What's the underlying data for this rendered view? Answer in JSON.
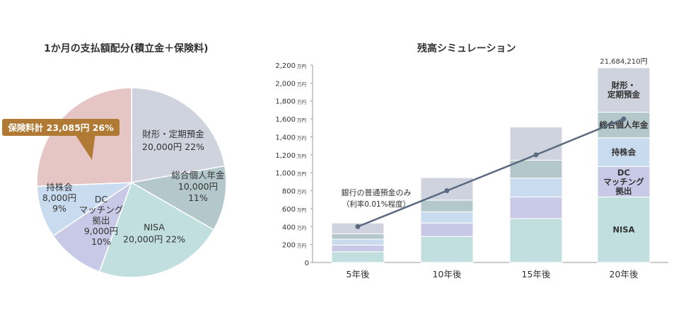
{
  "chart_data": [
    {
      "type": "pie",
      "title": "1か月の支払額配分(積立金＋保険料)",
      "unit": "円",
      "slices": [
        {
          "name": "財形・定期預金",
          "lines": [
            "財形・定期預金",
            "20,000円 22%"
          ],
          "value": 20000,
          "percent": 22,
          "color": "#cfd3de"
        },
        {
          "name": "総合個人年金",
          "lines": [
            "総合個人年金",
            "10,000円",
            "11%"
          ],
          "value": 10000,
          "percent": 11,
          "color": "#b4c8cc"
        },
        {
          "name": "NISA",
          "lines": [
            "NISA",
            "20,000円 22%"
          ],
          "value": 20000,
          "percent": 22,
          "color": "#c1dfdf"
        },
        {
          "name": "DCマッチング拠出",
          "lines": [
            "DC",
            "マッチング",
            "拠出",
            "9,000円",
            "10%"
          ],
          "value": 9000,
          "percent": 10,
          "color": "#c8c9e6"
        },
        {
          "name": "持株会",
          "lines": [
            "持株会",
            "8,000円",
            "9%"
          ],
          "value": 8000,
          "percent": 9,
          "color": "#c9dbef"
        },
        {
          "name": "保険料計",
          "lines": [],
          "value": 23085,
          "percent": 26,
          "color": "#e6c6c4"
        }
      ],
      "callout": {
        "text": "保険料計 23,085円 26%",
        "color": "#b07a34"
      }
    },
    {
      "type": "stacked-bar+line",
      "title": "残高シミュレーション",
      "categories": [
        "5年後",
        "10年後",
        "15年後",
        "20年後"
      ],
      "ylim": [
        0,
        2200
      ],
      "yticks": [
        0,
        200,
        400,
        600,
        800,
        1000,
        1200,
        1400,
        1600,
        1800,
        2000,
        2200
      ],
      "ytick_labels": [
        "0",
        "200",
        "400",
        "600",
        "800",
        "1,000",
        "1,200",
        "1,400",
        "1,600",
        "1,800",
        "2,000",
        "2,200"
      ],
      "ytick_unit": "万円",
      "series": [
        {
          "name": "NISA",
          "label_lines": [
            "NISA"
          ],
          "color": "#c1dfdf",
          "values": [
            120,
            290,
            490,
            730
          ]
        },
        {
          "name": "DCマッチング拠出",
          "label_lines": [
            "DC",
            "マッチング",
            "拠出"
          ],
          "color": "#c8c9e6",
          "values": [
            75,
            150,
            240,
            340
          ]
        },
        {
          "name": "持株会",
          "label_lines": [
            "持株会"
          ],
          "color": "#c9dbef",
          "values": [
            65,
            125,
            210,
            320
          ]
        },
        {
          "name": "総合個人年金",
          "label_lines": [
            "総合個人年金"
          ],
          "color": "#b4c8cc",
          "values": [
            60,
            130,
            200,
            285
          ]
        },
        {
          "name": "財形・定期預金",
          "label_lines": [
            "財形・",
            "定期預金"
          ],
          "color": "#cfd3de",
          "values": [
            120,
            250,
            370,
            495
          ]
        }
      ],
      "total_label": "21,684,210円",
      "line": {
        "name": "銀行の普通預金のみ",
        "label_lines": [
          "銀行の普通預金のみ",
          "（利率0.01%程度）"
        ],
        "values": [
          400,
          800,
          1200,
          1600
        ],
        "color": "#5c6a80"
      }
    }
  ]
}
